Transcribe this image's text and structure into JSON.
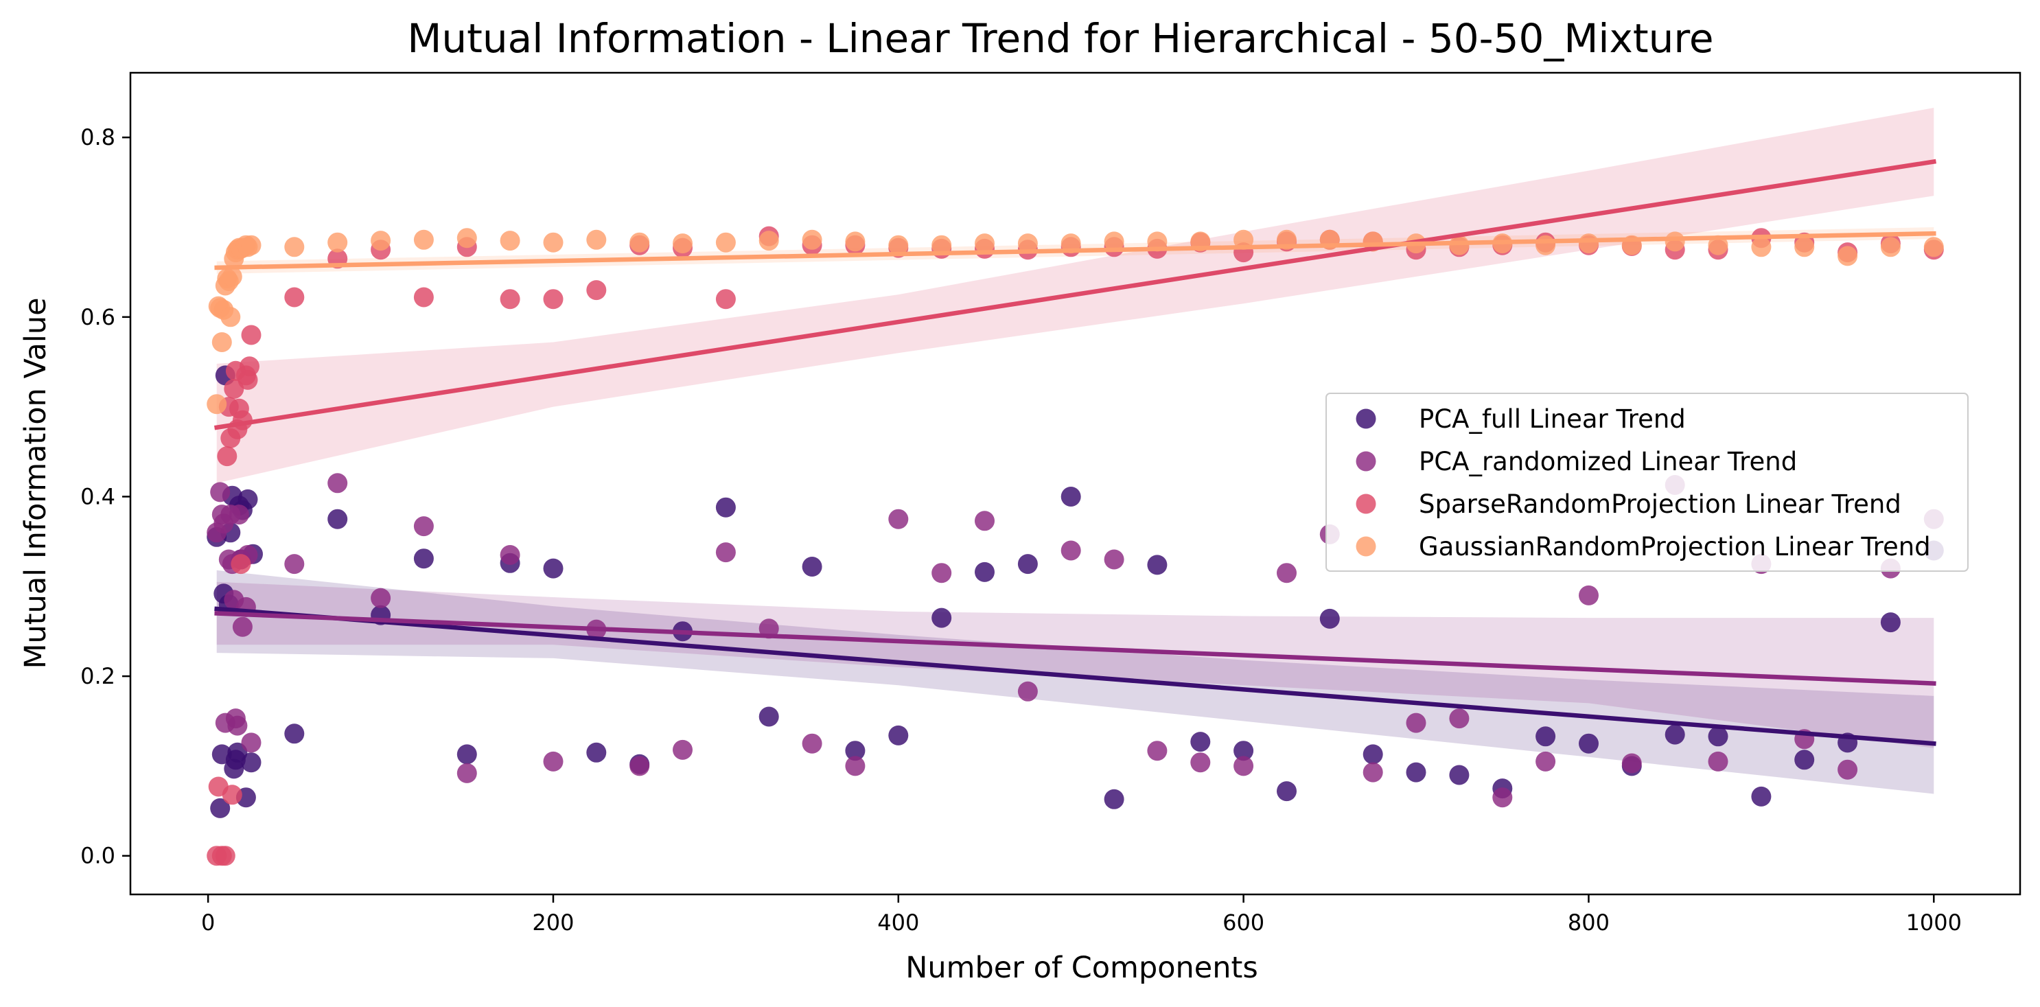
{
  "chart_data": {
    "type": "scatter",
    "title": "Mutual Information - Linear Trend for Hierarchical - 50-50_Mixture",
    "xlabel": "Number of Components",
    "ylabel": "Mutual Information Value",
    "xlim": [
      -45,
      1050
    ],
    "ylim": [
      -0.043,
      0.872
    ],
    "x_ticks": [
      0,
      200,
      400,
      600,
      800,
      1000
    ],
    "y_ticks": [
      0.0,
      0.2,
      0.4,
      0.6,
      0.8
    ],
    "y_tick_labels": [
      "0.0",
      "0.2",
      "0.4",
      "0.6",
      "0.8"
    ],
    "grid": false,
    "legend_position": "center-right",
    "series": [
      {
        "name": "PCA_full Linear Trend",
        "color": "#3b0f70",
        "points": [
          [
            5,
            0.355
          ],
          [
            7,
            0.053
          ],
          [
            8,
            0.113
          ],
          [
            9,
            0.292
          ],
          [
            10,
            0.535
          ],
          [
            12,
            0.28
          ],
          [
            13,
            0.36
          ],
          [
            14,
            0.401
          ],
          [
            15,
            0.097
          ],
          [
            16,
            0.107
          ],
          [
            17,
            0.115
          ],
          [
            18,
            0.39
          ],
          [
            19,
            0.33
          ],
          [
            20,
            0.385
          ],
          [
            22,
            0.065
          ],
          [
            23,
            0.397
          ],
          [
            25,
            0.104
          ],
          [
            26,
            0.336
          ],
          [
            50,
            0.136
          ],
          [
            75,
            0.375
          ],
          [
            100,
            0.268
          ],
          [
            125,
            0.331
          ],
          [
            150,
            0.113
          ],
          [
            175,
            0.326
          ],
          [
            200,
            0.32
          ],
          [
            225,
            0.115
          ],
          [
            250,
            0.102
          ],
          [
            275,
            0.25
          ],
          [
            300,
            0.388
          ],
          [
            325,
            0.155
          ],
          [
            350,
            0.322
          ],
          [
            375,
            0.117
          ],
          [
            400,
            0.134
          ],
          [
            425,
            0.265
          ],
          [
            450,
            0.316
          ],
          [
            475,
            0.325
          ],
          [
            500,
            0.4
          ],
          [
            525,
            0.063
          ],
          [
            550,
            0.324
          ],
          [
            575,
            0.127
          ],
          [
            600,
            0.117
          ],
          [
            625,
            0.072
          ],
          [
            650,
            0.264
          ],
          [
            675,
            0.113
          ],
          [
            700,
            0.093
          ],
          [
            725,
            0.09
          ],
          [
            750,
            0.075
          ],
          [
            775,
            0.133
          ],
          [
            800,
            0.125
          ],
          [
            825,
            0.1
          ],
          [
            850,
            0.135
          ],
          [
            875,
            0.133
          ],
          [
            900,
            0.066
          ],
          [
            925,
            0.107
          ],
          [
            950,
            0.126
          ],
          [
            975,
            0.26
          ],
          [
            1000,
            0.34
          ]
        ],
        "trend": {
          "x": [
            5,
            1000
          ],
          "y": [
            0.275,
            0.125
          ]
        },
        "ci": {
          "x": [
            5,
            200,
            400,
            600,
            800,
            1000
          ],
          "upper": [
            0.318,
            0.278,
            0.246,
            0.218,
            0.196,
            0.178
          ],
          "lower": [
            0.226,
            0.22,
            0.19,
            0.15,
            0.11,
            0.069
          ]
        }
      },
      {
        "name": "PCA_randomized Linear Trend",
        "color": "#8c2981",
        "points": [
          [
            5,
            0.36
          ],
          [
            7,
            0.405
          ],
          [
            8,
            0.38
          ],
          [
            9,
            0.37
          ],
          [
            10,
            0.148
          ],
          [
            12,
            0.33
          ],
          [
            13,
            0.38
          ],
          [
            14,
            0.325
          ],
          [
            15,
            0.285
          ],
          [
            16,
            0.153
          ],
          [
            17,
            0.145
          ],
          [
            18,
            0.38
          ],
          [
            19,
            0.33
          ],
          [
            20,
            0.255
          ],
          [
            22,
            0.277
          ],
          [
            23,
            0.335
          ],
          [
            25,
            0.126
          ],
          [
            50,
            0.325
          ],
          [
            75,
            0.415
          ],
          [
            100,
            0.287
          ],
          [
            125,
            0.367
          ],
          [
            150,
            0.092
          ],
          [
            175,
            0.335
          ],
          [
            200,
            0.105
          ],
          [
            225,
            0.252
          ],
          [
            250,
            0.1
          ],
          [
            275,
            0.118
          ],
          [
            300,
            0.338
          ],
          [
            325,
            0.253
          ],
          [
            350,
            0.125
          ],
          [
            375,
            0.1
          ],
          [
            400,
            0.375
          ],
          [
            425,
            0.315
          ],
          [
            450,
            0.373
          ],
          [
            475,
            0.183
          ],
          [
            500,
            0.34
          ],
          [
            525,
            0.33
          ],
          [
            550,
            0.117
          ],
          [
            575,
            0.104
          ],
          [
            600,
            0.1
          ],
          [
            625,
            0.315
          ],
          [
            650,
            0.358
          ],
          [
            675,
            0.093
          ],
          [
            700,
            0.148
          ],
          [
            725,
            0.153
          ],
          [
            750,
            0.065
          ],
          [
            775,
            0.105
          ],
          [
            800,
            0.29
          ],
          [
            825,
            0.103
          ],
          [
            850,
            0.413
          ],
          [
            875,
            0.105
          ],
          [
            900,
            0.325
          ],
          [
            925,
            0.13
          ],
          [
            950,
            0.096
          ],
          [
            975,
            0.32
          ],
          [
            1000,
            0.375
          ]
        ],
        "trend": {
          "x": [
            5,
            1000
          ],
          "y": [
            0.27,
            0.192
          ]
        },
        "ci": {
          "x": [
            5,
            200,
            400,
            600,
            800,
            1000
          ],
          "upper": [
            0.305,
            0.288,
            0.272,
            0.267,
            0.265,
            0.265
          ],
          "lower": [
            0.235,
            0.235,
            0.21,
            0.19,
            0.17,
            0.12
          ]
        }
      },
      {
        "name": "SparseRandomProjection Linear Trend",
        "color": "#de4968",
        "points": [
          [
            5,
            0.0
          ],
          [
            6,
            0.077
          ],
          [
            8,
            0.0
          ],
          [
            10,
            0.0
          ],
          [
            11,
            0.445
          ],
          [
            12,
            0.5
          ],
          [
            13,
            0.465
          ],
          [
            14,
            0.068
          ],
          [
            15,
            0.52
          ],
          [
            16,
            0.54
          ],
          [
            17,
            0.475
          ],
          [
            18,
            0.498
          ],
          [
            19,
            0.325
          ],
          [
            20,
            0.485
          ],
          [
            22,
            0.535
          ],
          [
            23,
            0.53
          ],
          [
            24,
            0.545
          ],
          [
            25,
            0.58
          ],
          [
            50,
            0.622
          ],
          [
            75,
            0.665
          ],
          [
            100,
            0.675
          ],
          [
            125,
            0.622
          ],
          [
            150,
            0.678
          ],
          [
            175,
            0.62
          ],
          [
            200,
            0.62
          ],
          [
            225,
            0.63
          ],
          [
            250,
            0.68
          ],
          [
            275,
            0.677
          ],
          [
            300,
            0.62
          ],
          [
            325,
            0.69
          ],
          [
            350,
            0.68
          ],
          [
            375,
            0.68
          ],
          [
            400,
            0.677
          ],
          [
            425,
            0.676
          ],
          [
            450,
            0.676
          ],
          [
            475,
            0.675
          ],
          [
            500,
            0.678
          ],
          [
            525,
            0.678
          ],
          [
            550,
            0.676
          ],
          [
            575,
            0.683
          ],
          [
            600,
            0.672
          ],
          [
            625,
            0.684
          ],
          [
            650,
            0.686
          ],
          [
            675,
            0.684
          ],
          [
            700,
            0.675
          ],
          [
            725,
            0.678
          ],
          [
            750,
            0.68
          ],
          [
            775,
            0.683
          ],
          [
            800,
            0.68
          ],
          [
            825,
            0.679
          ],
          [
            850,
            0.675
          ],
          [
            875,
            0.675
          ],
          [
            900,
            0.688
          ],
          [
            925,
            0.683
          ],
          [
            950,
            0.672
          ],
          [
            975,
            0.682
          ],
          [
            1000,
            0.675
          ]
        ],
        "trend": {
          "x": [
            5,
            1000
          ],
          "y": [
            0.477,
            0.773
          ]
        },
        "ci": {
          "x": [
            5,
            200,
            400,
            600,
            800,
            1000
          ],
          "upper": [
            0.548,
            0.572,
            0.625,
            0.695,
            0.763,
            0.833
          ],
          "lower": [
            0.415,
            0.5,
            0.56,
            0.615,
            0.675,
            0.735
          ]
        }
      },
      {
        "name": "GaussianRandomProjection Linear Trend",
        "color": "#fe9f6d",
        "points": [
          [
            5,
            0.503
          ],
          [
            6,
            0.612
          ],
          [
            7,
            0.61
          ],
          [
            8,
            0.572
          ],
          [
            9,
            0.608
          ],
          [
            10,
            0.635
          ],
          [
            11,
            0.643
          ],
          [
            12,
            0.64
          ],
          [
            13,
            0.6
          ],
          [
            14,
            0.645
          ],
          [
            15,
            0.665
          ],
          [
            16,
            0.672
          ],
          [
            17,
            0.675
          ],
          [
            18,
            0.677
          ],
          [
            19,
            0.676
          ],
          [
            20,
            0.677
          ],
          [
            22,
            0.68
          ],
          [
            23,
            0.678
          ],
          [
            25,
            0.68
          ],
          [
            50,
            0.678
          ],
          [
            75,
            0.683
          ],
          [
            100,
            0.685
          ],
          [
            125,
            0.686
          ],
          [
            150,
            0.688
          ],
          [
            175,
            0.685
          ],
          [
            200,
            0.683
          ],
          [
            225,
            0.686
          ],
          [
            250,
            0.683
          ],
          [
            275,
            0.682
          ],
          [
            300,
            0.683
          ],
          [
            325,
            0.685
          ],
          [
            350,
            0.686
          ],
          [
            375,
            0.684
          ],
          [
            400,
            0.68
          ],
          [
            425,
            0.68
          ],
          [
            450,
            0.682
          ],
          [
            475,
            0.682
          ],
          [
            500,
            0.682
          ],
          [
            525,
            0.684
          ],
          [
            550,
            0.684
          ],
          [
            575,
            0.684
          ],
          [
            600,
            0.686
          ],
          [
            625,
            0.686
          ],
          [
            650,
            0.686
          ],
          [
            675,
            0.684
          ],
          [
            700,
            0.682
          ],
          [
            725,
            0.68
          ],
          [
            750,
            0.682
          ],
          [
            775,
            0.68
          ],
          [
            800,
            0.682
          ],
          [
            825,
            0.68
          ],
          [
            850,
            0.684
          ],
          [
            875,
            0.68
          ],
          [
            900,
            0.678
          ],
          [
            925,
            0.678
          ],
          [
            950,
            0.668
          ],
          [
            975,
            0.678
          ],
          [
            1000,
            0.678
          ]
        ],
        "trend": {
          "x": [
            5,
            1000
          ],
          "y": [
            0.655,
            0.693
          ]
        },
        "ci": {
          "x": [
            5,
            1000
          ],
          "upper": [
            0.662,
            0.7
          ],
          "lower": [
            0.648,
            0.687
          ]
        }
      }
    ]
  }
}
